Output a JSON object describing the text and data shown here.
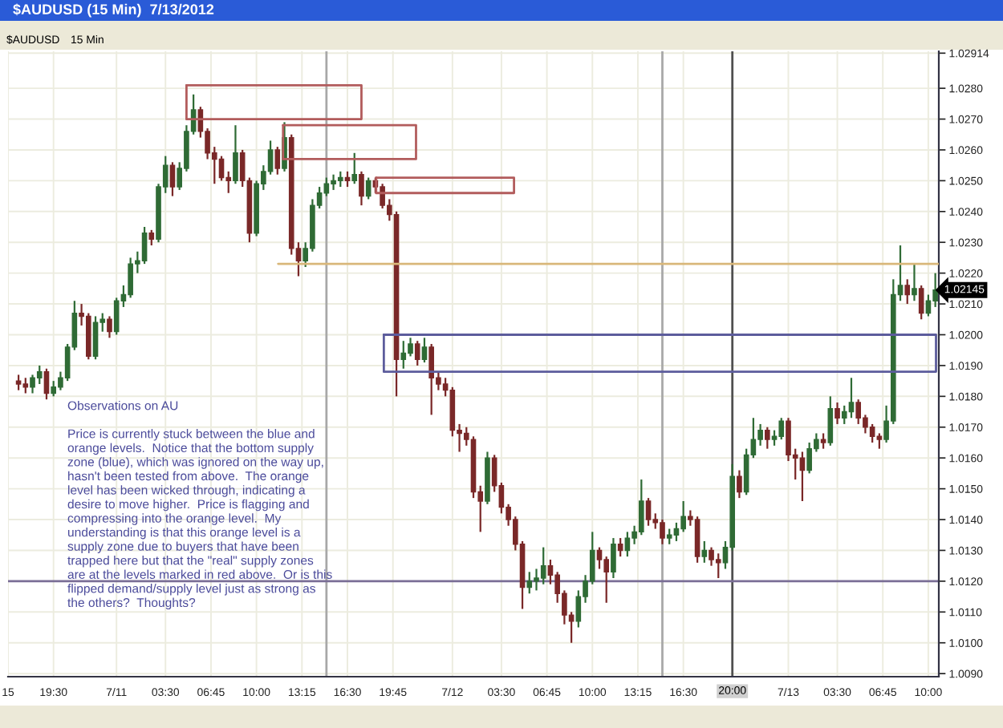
{
  "chart_data": {
    "type": "candlestick",
    "title": "$AUDUSD (15 Min)  7/13/2012",
    "x": [
      "2012-07-10T17:00",
      "2012-07-10T17:30",
      "2012-07-10T18:00",
      "2012-07-10T18:30",
      "2012-07-10T19:00",
      "2012-07-10T19:30",
      "2012-07-10T20:00",
      "2012-07-10T20:30",
      "2012-07-10T21:00",
      "2012-07-10T21:30",
      "2012-07-10T22:00",
      "2012-07-10T22:30",
      "2012-07-10T23:00",
      "2012-07-10T23:30",
      "2012-07-11T00:00",
      "2012-07-11T00:30",
      "2012-07-11T01:00",
      "2012-07-11T01:30",
      "2012-07-11T02:00",
      "2012-07-11T02:30",
      "2012-07-11T03:00",
      "2012-07-11T03:30",
      "2012-07-11T04:00",
      "2012-07-11T04:30",
      "2012-07-11T05:00",
      "2012-07-11T05:30",
      "2012-07-11T06:00",
      "2012-07-11T06:30",
      "2012-07-11T07:00",
      "2012-07-11T07:30",
      "2012-07-11T08:00",
      "2012-07-11T08:30",
      "2012-07-11T09:00",
      "2012-07-11T09:30",
      "2012-07-11T10:00",
      "2012-07-11T10:30",
      "2012-07-11T11:00",
      "2012-07-11T11:30",
      "2012-07-11T12:00",
      "2012-07-11T12:30",
      "2012-07-11T13:00",
      "2012-07-11T13:30",
      "2012-07-11T14:00",
      "2012-07-11T14:30",
      "2012-07-11T15:00",
      "2012-07-11T15:30",
      "2012-07-11T16:00",
      "2012-07-11T16:30",
      "2012-07-11T17:00",
      "2012-07-11T17:30",
      "2012-07-11T18:00",
      "2012-07-11T18:30",
      "2012-07-11T19:00",
      "2012-07-11T19:30",
      "2012-07-11T20:00",
      "2012-07-11T20:30",
      "2012-07-11T21:00",
      "2012-07-11T21:30",
      "2012-07-11T22:00",
      "2012-07-11T22:30",
      "2012-07-11T23:00",
      "2012-07-11T23:30",
      "2012-07-12T00:00",
      "2012-07-12T00:30",
      "2012-07-12T01:00",
      "2012-07-12T01:30",
      "2012-07-12T02:00",
      "2012-07-12T02:30",
      "2012-07-12T03:00",
      "2012-07-12T03:30",
      "2012-07-12T04:00",
      "2012-07-12T04:30",
      "2012-07-12T05:00",
      "2012-07-12T05:30",
      "2012-07-12T06:00",
      "2012-07-12T06:30",
      "2012-07-12T07:00",
      "2012-07-12T07:30",
      "2012-07-12T08:00",
      "2012-07-12T08:30",
      "2012-07-12T09:00",
      "2012-07-12T09:30",
      "2012-07-12T10:00",
      "2012-07-12T10:30",
      "2012-07-12T11:00",
      "2012-07-12T11:30",
      "2012-07-12T12:00",
      "2012-07-12T12:30",
      "2012-07-12T13:00",
      "2012-07-12T13:30",
      "2012-07-12T14:00",
      "2012-07-12T14:30",
      "2012-07-12T15:00",
      "2012-07-12T15:30",
      "2012-07-12T16:00",
      "2012-07-12T16:30",
      "2012-07-12T17:00",
      "2012-07-12T17:30",
      "2012-07-12T18:00",
      "2012-07-12T18:30",
      "2012-07-12T19:00",
      "2012-07-12T19:30",
      "2012-07-12T20:00",
      "2012-07-12T20:30",
      "2012-07-12T21:00",
      "2012-07-12T21:30",
      "2012-07-12T22:00",
      "2012-07-12T22:30",
      "2012-07-12T23:00",
      "2012-07-12T23:30",
      "2012-07-13T00:00",
      "2012-07-13T00:30",
      "2012-07-13T01:00",
      "2012-07-13T01:30",
      "2012-07-13T02:00",
      "2012-07-13T02:30",
      "2012-07-13T03:00",
      "2012-07-13T03:30",
      "2012-07-13T04:00",
      "2012-07-13T04:30",
      "2012-07-13T05:00",
      "2012-07-13T05:30",
      "2012-07-13T06:00",
      "2012-07-13T06:30",
      "2012-07-13T07:00",
      "2012-07-13T07:30",
      "2012-07-13T08:00",
      "2012-07-13T08:30",
      "2012-07-13T09:00",
      "2012-07-13T09:30",
      "2012-07-13T10:00",
      "2012-07-13T10:30"
    ],
    "ohlc": [
      [
        1.0185,
        1.0187,
        1.0182,
        1.0184
      ],
      [
        1.0184,
        1.0186,
        1.0181,
        1.0183
      ],
      [
        1.0183,
        1.0187,
        1.0181,
        1.0186
      ],
      [
        1.0186,
        1.019,
        1.0184,
        1.0188
      ],
      [
        1.0188,
        1.0189,
        1.0179,
        1.0181
      ],
      [
        1.0181,
        1.0185,
        1.018,
        1.0183
      ],
      [
        1.0183,
        1.0188,
        1.0182,
        1.0186
      ],
      [
        1.0186,
        1.0197,
        1.0185,
        1.0196
      ],
      [
        1.0196,
        1.0211,
        1.0195,
        1.0207
      ],
      [
        1.0207,
        1.021,
        1.0203,
        1.0206
      ],
      [
        1.0206,
        1.0207,
        1.0192,
        1.0193
      ],
      [
        1.0193,
        1.0206,
        1.0192,
        1.0204
      ],
      [
        1.0204,
        1.0207,
        1.0201,
        1.0205
      ],
      [
        1.0205,
        1.0206,
        1.0199,
        1.0201
      ],
      [
        1.0201,
        1.0212,
        1.02,
        1.0211
      ],
      [
        1.0211,
        1.0216,
        1.0209,
        1.0213
      ],
      [
        1.0213,
        1.0225,
        1.0212,
        1.0223
      ],
      [
        1.0223,
        1.0227,
        1.022,
        1.0224
      ],
      [
        1.0224,
        1.0235,
        1.0223,
        1.0233
      ],
      [
        1.0233,
        1.0234,
        1.0229,
        1.0231
      ],
      [
        1.0231,
        1.0249,
        1.023,
        1.0248
      ],
      [
        1.0248,
        1.0258,
        1.0246,
        1.0255
      ],
      [
        1.0255,
        1.0256,
        1.0245,
        1.0248
      ],
      [
        1.0248,
        1.0256,
        1.0247,
        1.0254
      ],
      [
        1.0254,
        1.0268,
        1.0253,
        1.0266
      ],
      [
        1.0266,
        1.0278,
        1.0265,
        1.0273
      ],
      [
        1.0273,
        1.0274,
        1.0264,
        1.0266
      ],
      [
        1.0266,
        1.0267,
        1.0257,
        1.0259
      ],
      [
        1.0259,
        1.0261,
        1.0249,
        1.0257
      ],
      [
        1.0257,
        1.0258,
        1.025,
        1.0251
      ],
      [
        1.0251,
        1.0253,
        1.0246,
        1.025
      ],
      [
        1.025,
        1.0268,
        1.0249,
        1.0259
      ],
      [
        1.0259,
        1.026,
        1.0248,
        1.025
      ],
      [
        1.025,
        1.0251,
        1.023,
        1.0233
      ],
      [
        1.0233,
        1.025,
        1.0232,
        1.0249
      ],
      [
        1.0249,
        1.0255,
        1.0247,
        1.0253
      ],
      [
        1.0253,
        1.0263,
        1.0252,
        1.026
      ],
      [
        1.026,
        1.0261,
        1.0252,
        1.0254
      ],
      [
        1.0254,
        1.0269,
        1.0253,
        1.0264
      ],
      [
        1.0264,
        1.0265,
        1.0226,
        1.0228
      ],
      [
        1.0228,
        1.023,
        1.0219,
        1.0224
      ],
      [
        1.0224,
        1.023,
        1.0222,
        1.0228
      ],
      [
        1.0228,
        1.0244,
        1.0227,
        1.0242
      ],
      [
        1.0242,
        1.0248,
        1.0241,
        1.0246
      ],
      [
        1.0246,
        1.0251,
        1.0245,
        1.0249
      ],
      [
        1.0249,
        1.0252,
        1.0247,
        1.025
      ],
      [
        1.025,
        1.0253,
        1.0248,
        1.0251
      ],
      [
        1.0251,
        1.0253,
        1.0248,
        1.025
      ],
      [
        1.025,
        1.0259,
        1.0249,
        1.0252
      ],
      [
        1.0252,
        1.0253,
        1.0242,
        1.0245
      ],
      [
        1.0245,
        1.0251,
        1.0244,
        1.025
      ],
      [
        1.025,
        1.0251,
        1.0246,
        1.0248
      ],
      [
        1.0248,
        1.0249,
        1.0241,
        1.0242
      ],
      [
        1.0242,
        1.0244,
        1.0237,
        1.0239
      ],
      [
        1.0239,
        1.024,
        1.018,
        1.0192
      ],
      [
        1.0192,
        1.0198,
        1.0189,
        1.0194
      ],
      [
        1.0194,
        1.0199,
        1.0193,
        1.0197
      ],
      [
        1.0197,
        1.0198,
        1.019,
        1.0192
      ],
      [
        1.0192,
        1.0199,
        1.0191,
        1.0196
      ],
      [
        1.0196,
        1.0197,
        1.0174,
        1.0186
      ],
      [
        1.0186,
        1.0188,
        1.0182,
        1.0184
      ],
      [
        1.0184,
        1.0186,
        1.018,
        1.0182
      ],
      [
        1.0182,
        1.0183,
        1.0167,
        1.0169
      ],
      [
        1.0169,
        1.0171,
        1.0162,
        1.0168
      ],
      [
        1.0168,
        1.017,
        1.0164,
        1.0166
      ],
      [
        1.0166,
        1.0167,
        1.0147,
        1.0149
      ],
      [
        1.0149,
        1.0151,
        1.0136,
        1.0146
      ],
      [
        1.0146,
        1.0162,
        1.0145,
        1.016
      ],
      [
        1.016,
        1.0161,
        1.0149,
        1.0151
      ],
      [
        1.0151,
        1.0152,
        1.0142,
        1.0144
      ],
      [
        1.0144,
        1.0145,
        1.0138,
        1.014
      ],
      [
        1.014,
        1.0141,
        1.013,
        1.0132
      ],
      [
        1.0132,
        1.0133,
        1.0111,
        1.0118
      ],
      [
        1.0118,
        1.0123,
        1.0116,
        1.012
      ],
      [
        1.012,
        1.0124,
        1.0117,
        1.0121
      ],
      [
        1.0121,
        1.0131,
        1.0119,
        1.0125
      ],
      [
        1.0125,
        1.0127,
        1.0119,
        1.0122
      ],
      [
        1.0122,
        1.0123,
        1.0113,
        1.0116
      ],
      [
        1.0116,
        1.0117,
        1.0106,
        1.0109
      ],
      [
        1.0109,
        1.011,
        1.01,
        1.0107
      ],
      [
        1.0107,
        1.0117,
        1.0105,
        1.0115
      ],
      [
        1.0115,
        1.0122,
        1.0113,
        1.012
      ],
      [
        1.012,
        1.0136,
        1.0119,
        1.013
      ],
      [
        1.013,
        1.0131,
        1.0124,
        1.0127
      ],
      [
        1.0127,
        1.0128,
        1.0113,
        1.0123
      ],
      [
        1.0123,
        1.0134,
        1.0121,
        1.0132
      ],
      [
        1.0132,
        1.0134,
        1.0128,
        1.013
      ],
      [
        1.013,
        1.0136,
        1.0128,
        1.0134
      ],
      [
        1.0134,
        1.0138,
        1.0132,
        1.0136
      ],
      [
        1.0136,
        1.0153,
        1.0135,
        1.0146
      ],
      [
        1.0146,
        1.0147,
        1.0138,
        1.014
      ],
      [
        1.014,
        1.0142,
        1.0137,
        1.0139
      ],
      [
        1.0139,
        1.014,
        1.0132,
        1.0134
      ],
      [
        1.0134,
        1.0137,
        1.0132,
        1.0135
      ],
      [
        1.0135,
        1.0139,
        1.0133,
        1.0137
      ],
      [
        1.0137,
        1.0146,
        1.0136,
        1.0141
      ],
      [
        1.0141,
        1.0143,
        1.0138,
        1.014
      ],
      [
        1.014,
        1.0141,
        1.0126,
        1.0128
      ],
      [
        1.0128,
        1.0133,
        1.0126,
        1.013
      ],
      [
        1.013,
        1.0131,
        1.0125,
        1.0127
      ],
      [
        1.0127,
        1.0129,
        1.0121,
        1.0126
      ],
      [
        1.0126,
        1.0133,
        1.0124,
        1.0131
      ],
      [
        1.0131,
        1.0158,
        1.013,
        1.0154
      ],
      [
        1.0154,
        1.0156,
        1.0147,
        1.0149
      ],
      [
        1.0149,
        1.0163,
        1.0148,
        1.0161
      ],
      [
        1.0161,
        1.0173,
        1.016,
        1.0166
      ],
      [
        1.0166,
        1.0171,
        1.0164,
        1.0169
      ],
      [
        1.0169,
        1.017,
        1.0163,
        1.0166
      ],
      [
        1.0166,
        1.0169,
        1.0164,
        1.0167
      ],
      [
        1.0167,
        1.0173,
        1.0166,
        1.0172
      ],
      [
        1.0172,
        1.0173,
        1.0159,
        1.0161
      ],
      [
        1.0161,
        1.0163,
        1.0153,
        1.016
      ],
      [
        1.016,
        1.0162,
        1.0146,
        1.0156
      ],
      [
        1.0156,
        1.0165,
        1.0155,
        1.0163
      ],
      [
        1.0163,
        1.0168,
        1.0162,
        1.0166
      ],
      [
        1.0166,
        1.0168,
        1.0163,
        1.0165
      ],
      [
        1.0165,
        1.018,
        1.0164,
        1.0176
      ],
      [
        1.0176,
        1.0178,
        1.0171,
        1.0173
      ],
      [
        1.0173,
        1.0177,
        1.0171,
        1.0175
      ],
      [
        1.0175,
        1.0186,
        1.0173,
        1.0178
      ],
      [
        1.0178,
        1.0179,
        1.0171,
        1.0173
      ],
      [
        1.0173,
        1.0174,
        1.0168,
        1.017
      ],
      [
        1.017,
        1.0171,
        1.0165,
        1.0167
      ],
      [
        1.0167,
        1.0168,
        1.0163,
        1.0166
      ],
      [
        1.0166,
        1.0177,
        1.0165,
        1.0172
      ],
      [
        1.0172,
        1.0218,
        1.0171,
        1.0213
      ],
      [
        1.0213,
        1.0229,
        1.0211,
        1.0216
      ],
      [
        1.0216,
        1.0218,
        1.021,
        1.0213
      ],
      [
        1.0213,
        1.0223,
        1.0211,
        1.0215
      ],
      [
        1.0215,
        1.0216,
        1.0205,
        1.0207
      ],
      [
        1.0207,
        1.0213,
        1.0206,
        1.0211
      ],
      [
        1.0211,
        1.022,
        1.0209,
        1.02145
      ]
    ],
    "colors": [
      "#7a2828",
      "#7a2828",
      "#2f6b35",
      "#2f6b35",
      "#7a2828",
      "#2f6b35",
      "#2f6b35",
      "#2f6b35",
      "#2f6b35",
      "#7a2828",
      "#7a2828",
      "#2f6b35",
      "#2f6b35",
      "#7a2828",
      "#2f6b35",
      "#2f6b35",
      "#2f6b35",
      "#2f6b35",
      "#2f6b35",
      "#7a2828",
      "#2f6b35",
      "#2f6b35",
      "#7a2828",
      "#2f6b35",
      "#2f6b35",
      "#2f6b35",
      "#7a2828",
      "#7a2828",
      "#7a2828",
      "#7a2828",
      "#7a2828",
      "#2f6b35",
      "#7a2828",
      "#7a2828",
      "#2f6b35",
      "#2f6b35",
      "#2f6b35",
      "#7a2828",
      "#2f6b35",
      "#7a2828",
      "#7a2828",
      "#2f6b35",
      "#2f6b35",
      "#2f6b35",
      "#2f6b35",
      "#2f6b35",
      "#2f6b35",
      "#7a2828",
      "#2f6b35",
      "#7a2828",
      "#2f6b35",
      "#7a2828",
      "#7a2828",
      "#7a2828",
      "#7a2828",
      "#2f6b35",
      "#2f6b35",
      "#7a2828",
      "#2f6b35",
      "#7a2828",
      "#7a2828",
      "#7a2828",
      "#7a2828",
      "#7a2828",
      "#7a2828",
      "#7a2828",
      "#7a2828",
      "#2f6b35",
      "#7a2828",
      "#7a2828",
      "#7a2828",
      "#7a2828",
      "#7a2828",
      "#2f6b35",
      "#2f6b35",
      "#2f6b35",
      "#7a2828",
      "#7a2828",
      "#7a2828",
      "#7a2828",
      "#2f6b35",
      "#2f6b35",
      "#2f6b35",
      "#7a2828",
      "#7a2828",
      "#2f6b35",
      "#7a2828",
      "#2f6b35",
      "#2f6b35",
      "#2f6b35",
      "#7a2828",
      "#7a2828",
      "#7a2828",
      "#2f6b35",
      "#2f6b35",
      "#2f6b35",
      "#7a2828",
      "#7a2828",
      "#2f6b35",
      "#7a2828",
      "#7a2828",
      "#2f6b35",
      "#2f6b35",
      "#7a2828",
      "#2f6b35",
      "#2f6b35",
      "#2f6b35",
      "#7a2828",
      "#2f6b35",
      "#2f6b35",
      "#7a2828",
      "#7a2828",
      "#7a2828",
      "#2f6b35",
      "#2f6b35",
      "#7a2828",
      "#2f6b35",
      "#7a2828",
      "#2f6b35",
      "#2f6b35",
      "#7a2828",
      "#7a2828",
      "#7a2828",
      "#7a2828",
      "#2f6b35",
      "#2f6b35",
      "#2f6b35",
      "#7a2828",
      "#2f6b35",
      "#7a2828",
      "#2f6b35",
      "#2f6b35"
    ],
    "series": [
      {
        "type": "line",
        "color": "#d9b77a",
        "x": [
          "2012-07-11T11:33",
          "2012-07-13T10:45"
        ],
        "values": [
          1.0223,
          1.0223
        ]
      },
      {
        "type": "line",
        "color": "#b25c5c",
        "x": [
          "2012-07-11T05:00",
          "2012-07-11T17:30",
          "2012-07-11T17:30",
          "2012-07-11T05:00"
        ],
        "values": [
          1.027,
          1.027,
          1.0281,
          1.0281
        ]
      },
      {
        "type": "line",
        "color": "#b25c5c",
        "x": [
          "2012-07-11T05:00",
          "2012-07-11T05:00"
        ],
        "values": [
          1.0281,
          1.027
        ]
      },
      {
        "type": "line",
        "color": "#b25c5c",
        "x": [
          "2012-07-11T11:54",
          "2012-07-11T21:24",
          "2012-07-11T21:24",
          "2012-07-11T11:54"
        ],
        "values": [
          1.0257,
          1.0257,
          1.0268,
          1.0268
        ]
      },
      {
        "type": "line",
        "color": "#b25c5c",
        "x": [
          "2012-07-11T11:54",
          "2012-07-11T11:54"
        ],
        "values": [
          1.0268,
          1.0257
        ]
      },
      {
        "type": "line",
        "color": "#b25c5c",
        "x": [
          "2012-07-11T18:33",
          "2012-07-12T04:24",
          "2012-07-12T04:24",
          "2012-07-11T18:33"
        ],
        "values": [
          1.0246,
          1.0246,
          1.0251,
          1.0251
        ]
      },
      {
        "type": "line",
        "color": "#b25c5c",
        "x": [
          "2012-07-11T18:33",
          "2012-07-11T18:33"
        ],
        "values": [
          1.0251,
          1.0246
        ]
      },
      {
        "type": "line",
        "color": "#5c5c9c",
        "x": [
          "2012-07-11T19:06",
          "2012-07-13T10:33",
          "2012-07-13T10:33",
          "2012-07-11T19:06"
        ],
        "values": [
          1.0188,
          1.0188,
          1.02,
          1.02
        ]
      },
      {
        "type": "line",
        "color": "#5c5c9c",
        "x": [
          "2012-07-11T19:06",
          "2012-07-11T19:06"
        ],
        "values": [
          1.02,
          1.0188
        ]
      }
    ],
    "ref_lines": [
      {
        "axis": "x",
        "value": "2012-07-11T15:00",
        "color": "#a8a8a8"
      },
      {
        "axis": "x",
        "value": "2012-07-12T15:00",
        "color": "#a8a8a8"
      },
      {
        "axis": "x",
        "value": "2012-07-12T20:00",
        "label": "20:00",
        "color": "#505050"
      },
      {
        "axis": "y",
        "value": 1.012,
        "color": "#7a6e96"
      }
    ],
    "xlim": [
      "2012-07-10T16:15",
      "2012-07-13T10:45"
    ],
    "ylim": [
      1.0089,
      1.0292
    ],
    "xticks": [
      {
        "value": "2012-07-10T16:15",
        "label": "15"
      },
      {
        "value": "2012-07-10T19:30",
        "label": "19:30"
      },
      {
        "value": "2012-07-11T00:00",
        "label": "7/11"
      },
      {
        "value": "2012-07-11T03:30",
        "label": "03:30"
      },
      {
        "value": "2012-07-11T06:45",
        "label": "06:45"
      },
      {
        "value": "2012-07-11T10:00",
        "label": "10:00"
      },
      {
        "value": "2012-07-11T13:15",
        "label": "13:15"
      },
      {
        "value": "2012-07-11T16:30",
        "label": "16:30"
      },
      {
        "value": "2012-07-11T19:45",
        "label": "19:45"
      },
      {
        "value": "2012-07-12T00:00",
        "label": "7/12"
      },
      {
        "value": "2012-07-12T03:30",
        "label": "03:30"
      },
      {
        "value": "2012-07-12T06:45",
        "label": "06:45"
      },
      {
        "value": "2012-07-12T10:00",
        "label": "10:00"
      },
      {
        "value": "2012-07-12T13:15",
        "label": "13:15"
      },
      {
        "value": "2012-07-12T16:30",
        "label": "16:30"
      },
      {
        "value": "2012-07-13T00:00",
        "label": "7/13"
      },
      {
        "value": "2012-07-13T03:30",
        "label": "03:30"
      },
      {
        "value": "2012-07-13T06:45",
        "label": "06:45"
      },
      {
        "value": "2012-07-13T10:00",
        "label": "10:00"
      }
    ],
    "yticks": [
      {
        "value": 1.009,
        "label": "1.0090"
      },
      {
        "value": 1.01,
        "label": "1.0100"
      },
      {
        "value": 1.011,
        "label": "1.0110"
      },
      {
        "value": 1.012,
        "label": "1.0120"
      },
      {
        "value": 1.013,
        "label": "1.0130"
      },
      {
        "value": 1.014,
        "label": "1.0140"
      },
      {
        "value": 1.015,
        "label": "1.0150"
      },
      {
        "value": 1.016,
        "label": "1.0160"
      },
      {
        "value": 1.017,
        "label": "1.0170"
      },
      {
        "value": 1.018,
        "label": "1.0180"
      },
      {
        "value": 1.019,
        "label": "1.0190"
      },
      {
        "value": 1.02,
        "label": "1.0200"
      },
      {
        "value": 1.021,
        "label": "1.0210"
      },
      {
        "value": 1.022,
        "label": "1.0220"
      },
      {
        "value": 1.023,
        "label": "1.0230"
      },
      {
        "value": 1.024,
        "label": "1.0240"
      },
      {
        "value": 1.025,
        "label": "1.0250"
      },
      {
        "value": 1.026,
        "label": "1.0260"
      },
      {
        "value": 1.027,
        "label": "1.0270"
      },
      {
        "value": 1.028,
        "label": "1.0280"
      },
      1.02914
    ],
    "grid": true,
    "annotations": [
      "$AUDUSD",
      "15 Min",
      "Observations on AU\n\nPrice is currently stuck between the blue and\norange levels.  Notice that the bottom supply\nzone (blue), which was ignored on the way up,\nhasn't been tested from above.  The orange\nlevel has been wicked through, indicating a\ndesire to move higher.  Price is flagging and\ncompressing into the orange level.  My\nunderstanding is that this orange level is a\nsupply zone due to buyers that have been\ntrapped here but that the \"real\" supply zones\nare at the levels marked in red above.  Or is this\nflipped demand/supply level just as strong as\nthe others?  Thoughts?",
      {
        "text": "1.02145",
        "x": "2012-07-13T10:30",
        "y": 1.02145
      }
    ]
  }
}
